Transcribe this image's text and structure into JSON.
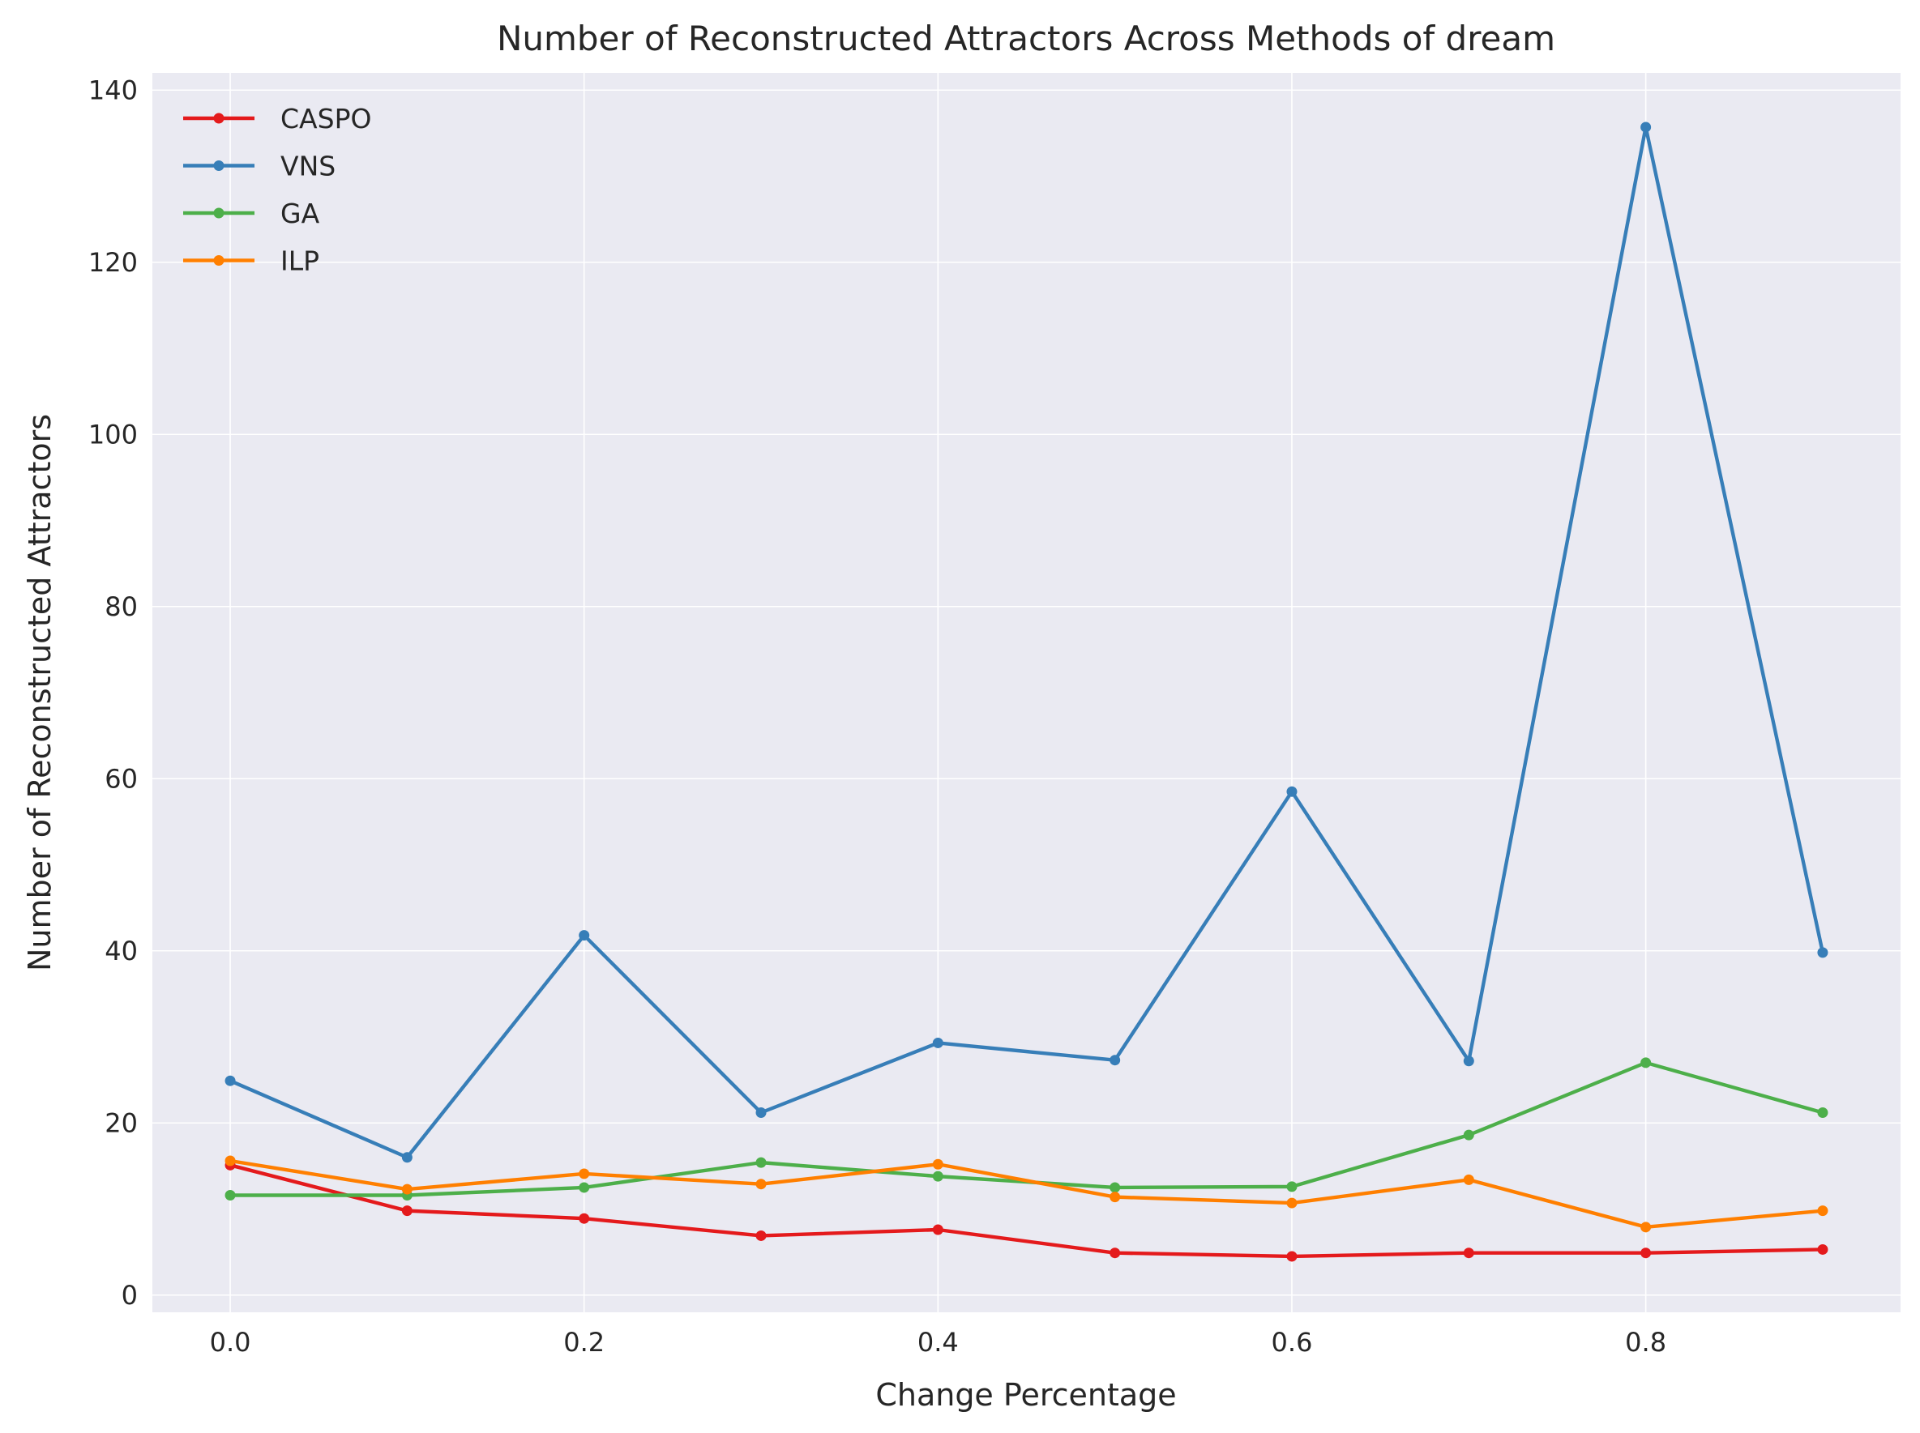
{
  "chart_data": {
    "type": "line",
    "title": "Number of Reconstructed Attractors Across Methods of dream",
    "xlabel": "Change Percentage",
    "ylabel": "Number of Reconstructed Attractors",
    "x": [
      0.0,
      0.1,
      0.2,
      0.3,
      0.4,
      0.5,
      0.6,
      0.7,
      0.8,
      0.9
    ],
    "xlim": [
      -0.044,
      0.944
    ],
    "ylim": [
      -2,
      142
    ],
    "xticks": [
      0.0,
      0.2,
      0.4,
      0.6,
      0.8
    ],
    "xtick_labels": [
      "0.0",
      "0.2",
      "0.4",
      "0.6",
      "0.8"
    ],
    "yticks": [
      0,
      20,
      40,
      60,
      80,
      100,
      120,
      140
    ],
    "ytick_labels": [
      "0",
      "20",
      "40",
      "60",
      "80",
      "100",
      "120",
      "140"
    ],
    "grid": true,
    "legend_position": "top-left",
    "series": [
      {
        "name": "CASPO",
        "color": "#e41a1c",
        "values": [
          15.1,
          9.8,
          8.9,
          6.9,
          7.6,
          4.9,
          4.5,
          4.9,
          4.9,
          5.3
        ]
      },
      {
        "name": "VNS",
        "color": "#377eb8",
        "values": [
          24.9,
          16.0,
          41.8,
          21.2,
          29.3,
          27.3,
          58.5,
          27.2,
          135.7,
          39.8
        ]
      },
      {
        "name": "GA",
        "color": "#4daf4a",
        "values": [
          11.6,
          11.6,
          12.5,
          15.4,
          13.8,
          12.5,
          12.6,
          18.6,
          27.0,
          21.2
        ]
      },
      {
        "name": "ILP",
        "color": "#ff7f00",
        "values": [
          15.6,
          12.3,
          14.1,
          12.9,
          15.2,
          11.4,
          10.7,
          13.4,
          7.9,
          9.8
        ]
      }
    ]
  },
  "style": {
    "plot_background": "#eaeaf2",
    "grid_color": "#ffffff",
    "text_color": "#262626"
  }
}
